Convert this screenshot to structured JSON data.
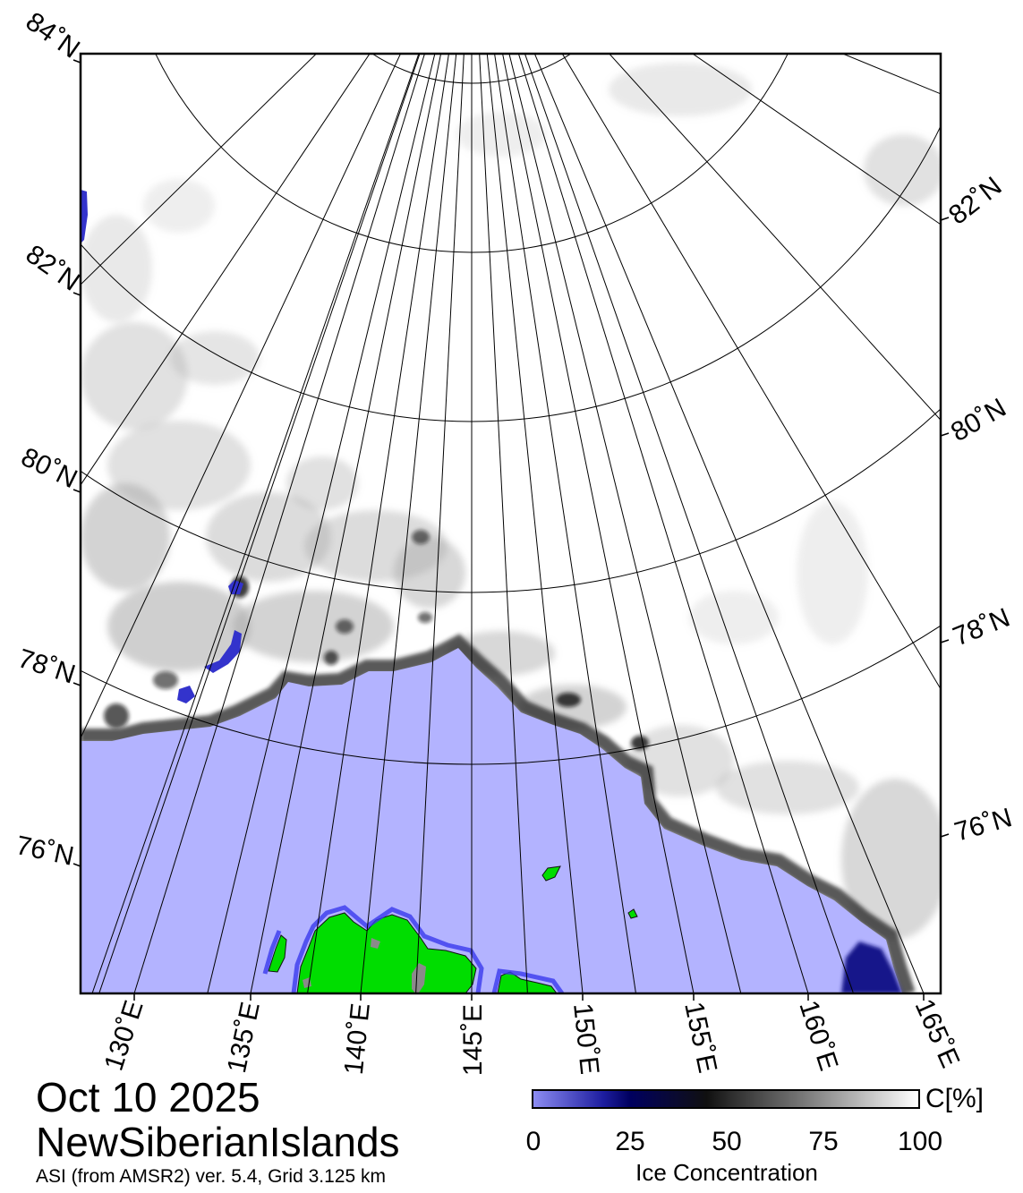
{
  "header": {
    "date": "Oct 10 2025",
    "region": "NewSiberianIslands",
    "product": "ASI (from AMSR2) ver. 5.4,  Grid 3.125 km"
  },
  "map": {
    "latitude_labels": [
      "84˚N",
      "82˚N",
      "80˚N",
      "78˚N",
      "76˚N"
    ],
    "longitude_labels": [
      "130˚E",
      "135˚E",
      "140˚E",
      "145˚E",
      "150˚E",
      "155˚E",
      "160˚E",
      "165˚E"
    ]
  },
  "colorbar": {
    "title": "Ice Concentration",
    "unit": "C[%]",
    "ticks": [
      "0",
      "25",
      "50",
      "75",
      "100"
    ]
  },
  "colors": {
    "open_water": "#b3b3ff",
    "land": "#00dd00",
    "ice_full": "#ffffff",
    "ice_edge": "#000000"
  }
}
